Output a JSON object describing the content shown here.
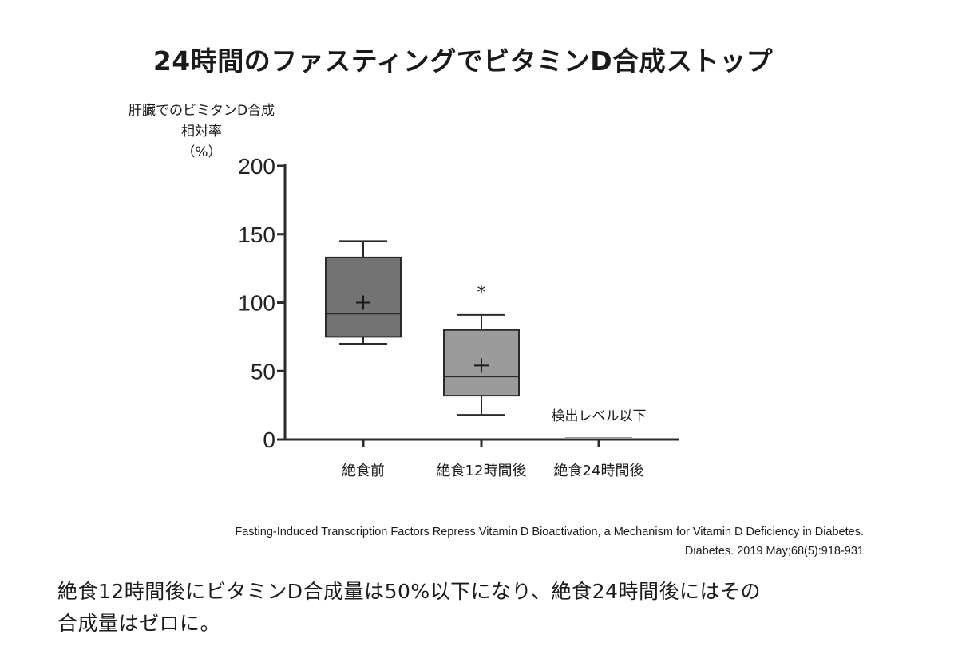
{
  "title": "24時間のファスティングでビタミンD合成ストップ",
  "ylabel_lines": [
    "肝臓でのビミタンD合成",
    "相対率",
    "（%）"
  ],
  "chart_data": {
    "type": "box",
    "categories": [
      "絶食前",
      "絶食12時間後",
      "絶食24時間後"
    ],
    "ylim": [
      0,
      200
    ],
    "yticks": [
      0,
      50,
      100,
      150,
      200
    ],
    "ylabel": "肝臓でのビミタンD合成 相対率 （%）",
    "boxes": [
      {
        "category": "絶食前",
        "whisker_low": 70,
        "q1": 75,
        "median": 92,
        "mean": 100,
        "q3": 133,
        "whisker_high": 145,
        "color": "#737373"
      },
      {
        "category": "絶食12時間後",
        "whisker_low": 18,
        "q1": 32,
        "median": 46,
        "mean": 54,
        "q3": 80,
        "whisker_high": 91,
        "color": "#9b9b9b"
      },
      {
        "category": "絶食24時間後",
        "below_detection": true,
        "annotation": "検出レベル以下"
      }
    ],
    "significance": [
      {
        "category": "絶食12時間後",
        "y": 108,
        "symbol": "*"
      }
    ],
    "grid": false,
    "legend": "none"
  },
  "source": {
    "line1": "Fasting-Induced Transcription Factors Repress Vitamin D Bioactivation, a Mechanism for Vitamin D Deficiency in Diabetes.",
    "line2": "Diabetes. 2019 May;68(5):918-931"
  },
  "caption": {
    "line1": "絶食12時間後にビタミンD合成量は50%以下になり、絶食24時間後にはその",
    "line2": "合成量はゼロに。"
  }
}
